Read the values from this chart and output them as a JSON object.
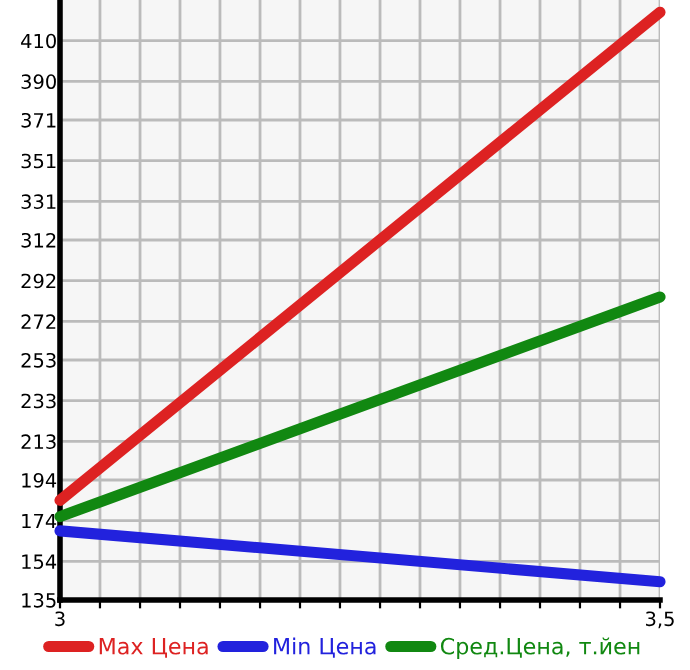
{
  "chart_data": {
    "type": "line",
    "x": [
      3,
      3.5
    ],
    "series": [
      {
        "name": "Max Цена",
        "color": "#dd2222",
        "values": [
          184,
          424
        ]
      },
      {
        "name": "Min Цена",
        "color": "#2222dd",
        "values": [
          169,
          144
        ]
      },
      {
        "name": "Сред.Цена, т.йен",
        "color": "#118811",
        "values": [
          176,
          284
        ]
      }
    ],
    "xlim": [
      3,
      3.5
    ],
    "xticks": [
      3,
      {
        "value": 3.0333,
        "label": null
      },
      {
        "value": 3.0667,
        "label": null
      },
      {
        "value": 3.1,
        "label": null
      },
      {
        "value": 3.1333,
        "label": null
      },
      {
        "value": 3.1667,
        "label": null
      },
      {
        "value": 3.2,
        "label": null
      },
      {
        "value": 3.2333,
        "label": null
      },
      {
        "value": 3.2667,
        "label": null
      },
      {
        "value": 3.3,
        "label": null
      },
      {
        "value": 3.3333,
        "label": null
      },
      {
        "value": 3.3667,
        "label": null
      },
      {
        "value": 3.4,
        "label": null
      },
      {
        "value": 3.4333,
        "label": null
      },
      {
        "value": 3.4667,
        "label": null
      },
      {
        "value": 3.5,
        "label": "3,5"
      }
    ],
    "ylim": [
      135,
      430
    ],
    "yticks": [
      135,
      154,
      174,
      194,
      213,
      233,
      253,
      272,
      292,
      312,
      331,
      351,
      371,
      390,
      410
    ],
    "grid": true,
    "legend": "bottom",
    "marker": "none",
    "line_style": "solid"
  }
}
